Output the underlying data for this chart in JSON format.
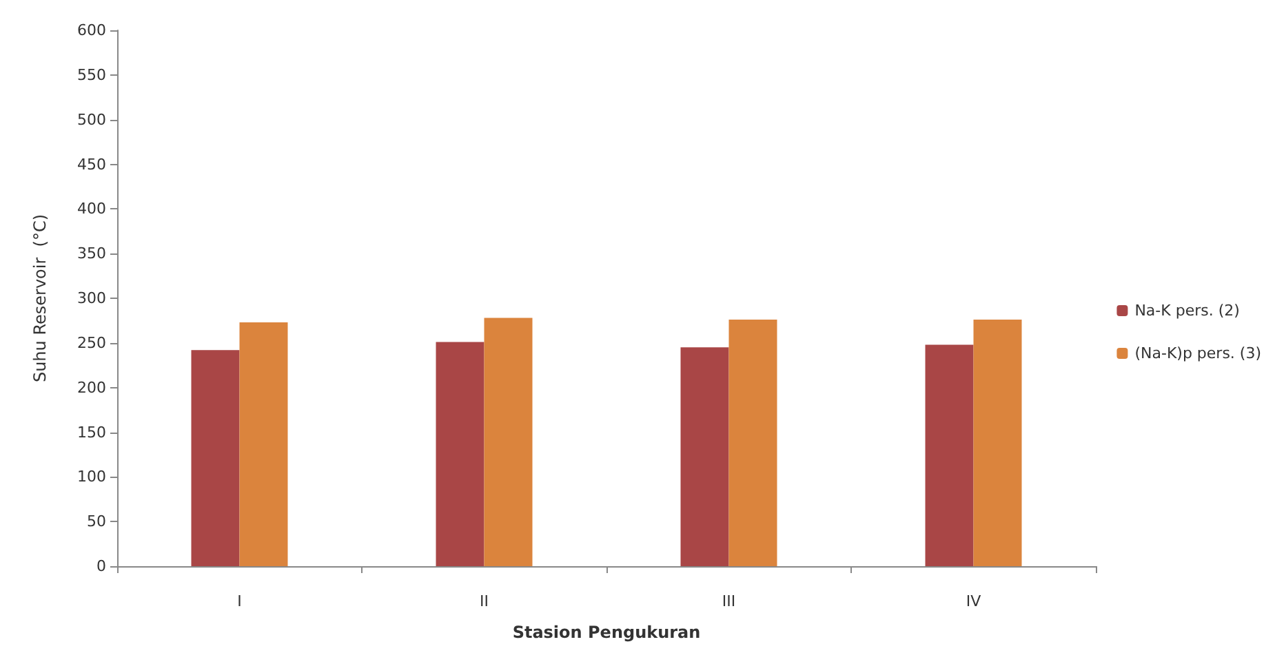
{
  "chart_data": {
    "type": "bar",
    "xlabel": "Stasion Pengukuran",
    "ylabel": "Suhu Reservoir  (°C)",
    "categories": [
      "I",
      "II",
      "III",
      "IV"
    ],
    "series": [
      {
        "name": "Na-K pers. (2)",
        "color": "#a94646",
        "values": [
          242,
          251,
          245,
          248
        ]
      },
      {
        "name": "(Na-K)p pers. (3)",
        "color": "#db843d",
        "values": [
          273,
          278,
          276,
          276
        ]
      }
    ],
    "ylim": [
      0,
      600
    ],
    "yticks": [
      0,
      50,
      100,
      150,
      200,
      250,
      300,
      350,
      400,
      450,
      500,
      550,
      600
    ],
    "grid": false,
    "legend": "right"
  }
}
